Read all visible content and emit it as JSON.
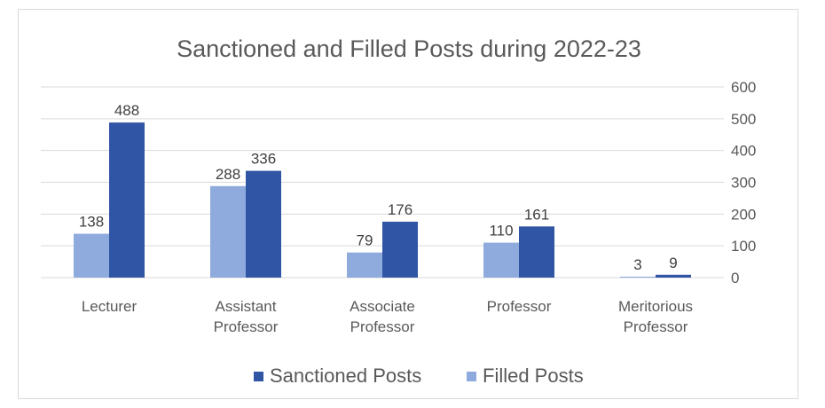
{
  "chart_data": {
    "type": "bar",
    "title": "Sanctioned and Filled Posts during 2022-23",
    "categories": [
      [
        "Lecturer"
      ],
      [
        "Assistant",
        "Professor"
      ],
      [
        "Associate",
        "Professor"
      ],
      [
        "Professor"
      ],
      [
        "Meritorious",
        "Professor"
      ]
    ],
    "series": [
      {
        "name": "Filled Posts",
        "color": "#8FAADC",
        "values": [
          138,
          288,
          79,
          110,
          3
        ]
      },
      {
        "name": "Sanctioned Posts",
        "color": "#2F55A4",
        "values": [
          488,
          336,
          176,
          161,
          9
        ]
      }
    ],
    "legend_order": [
      1,
      0
    ],
    "ylim": [
      0,
      600
    ],
    "yticks": [
      0,
      100,
      200,
      300,
      400,
      500,
      600
    ],
    "y_axis_side": "right",
    "grid": true,
    "legend_position": "bottom",
    "data_labels": true
  }
}
